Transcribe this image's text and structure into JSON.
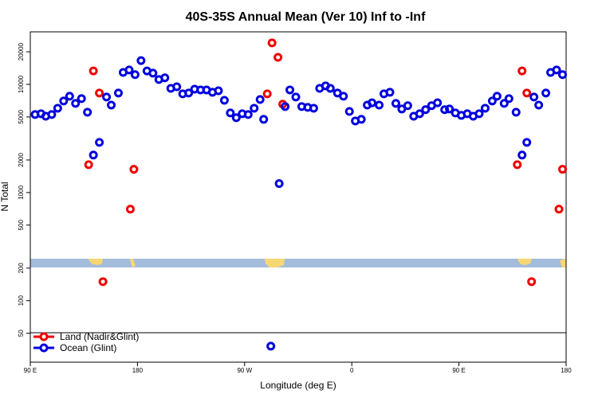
{
  "chart_data": {
    "type": "scatter",
    "title": "40S-35S Annual Mean (Ver 10)   Inf to -Inf",
    "x_label": "Longitude (deg E)",
    "y_label": "N Total",
    "log_y": true,
    "legend": "lower left",
    "xlim": [
      90,
      540
    ],
    "xticks": [
      {
        "value": 90,
        "label": "90 E"
      },
      180,
      {
        "value": 270,
        "label": "90 W"
      },
      {
        "value": 360,
        "label": "0"
      },
      {
        "value": 450,
        "label": "90 E"
      },
      {
        "value": 540,
        "label": "180"
      }
    ],
    "ylim": [
      27,
      30600
    ],
    "yticks": [
      50,
      100,
      200,
      500,
      1000,
      2000,
      5000,
      10000,
      20000
    ],
    "series": [
      {
        "name": "Land (Nadir&Glint)",
        "color": "#ee0000",
        "x": [
          139,
          143,
          148,
          151,
          174,
          177,
          289,
          293,
          298,
          302,
          499,
          503,
          507,
          511,
          534,
          537
        ],
        "values": [
          1810,
          13300,
          8310,
          150,
          702,
          1640,
          8170,
          24200,
          17800,
          6560,
          1810,
          13300,
          8310,
          150,
          702,
          1640
        ]
      },
      {
        "name": "Ocean (Glint)",
        "color": "#0000dd",
        "x": [
          94,
          99,
          103,
          108,
          113,
          118,
          123,
          128,
          133,
          138,
          143,
          148,
          154,
          158,
          164,
          168,
          173,
          178,
          183,
          188,
          193,
          198,
          203,
          208,
          213,
          218,
          223,
          228,
          233,
          238,
          243,
          248,
          253,
          258,
          263,
          268,
          273,
          278,
          283,
          286,
          292,
          299,
          304,
          308,
          313,
          318,
          323,
          328,
          333,
          338,
          342,
          348,
          353,
          358,
          363,
          368,
          373,
          377,
          383,
          387,
          392,
          397,
          402,
          407,
          412,
          417,
          422,
          427,
          432,
          438,
          442,
          447,
          452,
          457,
          462,
          467,
          472,
          478,
          482,
          488,
          492,
          498,
          503,
          507,
          513,
          517,
          523,
          527,
          532,
          537
        ],
        "values": [
          5260,
          5350,
          5080,
          5260,
          6020,
          7020,
          7770,
          6670,
          7380,
          5530,
          2220,
          2910,
          7640,
          6440,
          8310,
          12900,
          13600,
          12300,
          16600,
          13300,
          12700,
          11100,
          11500,
          9190,
          9500,
          8170,
          8310,
          9030,
          8890,
          8890,
          8450,
          8730,
          7130,
          5440,
          4920,
          5350,
          5260,
          6020,
          7250,
          4750,
          38,
          1210,
          6240,
          8890,
          7640,
          6240,
          6130,
          6020,
          9190,
          9680,
          9190,
          8310,
          7770,
          5620,
          4590,
          4750,
          6440,
          6760,
          6440,
          8170,
          8450,
          6670,
          5920,
          6350,
          5080,
          5350,
          5840,
          6350,
          6760,
          5840,
          5920,
          5440,
          5170,
          5350,
          5080,
          5350,
          6020,
          7020,
          7770,
          6670,
          7380,
          5530,
          2220,
          2910,
          7640,
          6440,
          8310,
          12900,
          13600,
          12300
        ]
      }
    ]
  }
}
